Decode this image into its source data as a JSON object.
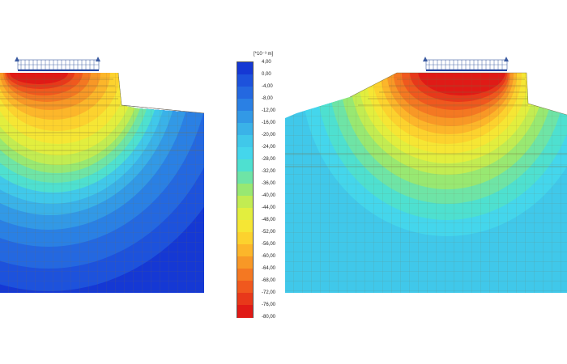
{
  "legend": {
    "unit": "[*10⁻³ m]",
    "ticks": [
      "4,00",
      "0,00",
      "-4,00",
      "-8,00",
      "-12,00",
      "-16,00",
      "-20,00",
      "-24,00",
      "-28,00",
      "-32,00",
      "-36,00",
      "-40,00",
      "-44,00",
      "-48,00",
      "-52,00",
      "-56,00",
      "-60,00",
      "-64,00",
      "-68,00",
      "-72,00",
      "-76,00",
      "-80,00"
    ],
    "colors": [
      "#1538d4",
      "#1d52dc",
      "#2468e0",
      "#2a80e4",
      "#3299e6",
      "#3ab2e8",
      "#40c8ea",
      "#44d6ec",
      "#4ee0d0",
      "#6ee4a6",
      "#98e872",
      "#c2ec52",
      "#e2ee3e",
      "#f6e634",
      "#fcd22e",
      "#fcb62a",
      "#f89826",
      "#f47822",
      "#f0581e",
      "#e8381a",
      "#e01a16"
    ]
  },
  "colors": {
    "background": "#ffffff",
    "deep_blue": "#1538d4",
    "red": "#e01a16",
    "grid_line": "#7a6a3a"
  }
}
